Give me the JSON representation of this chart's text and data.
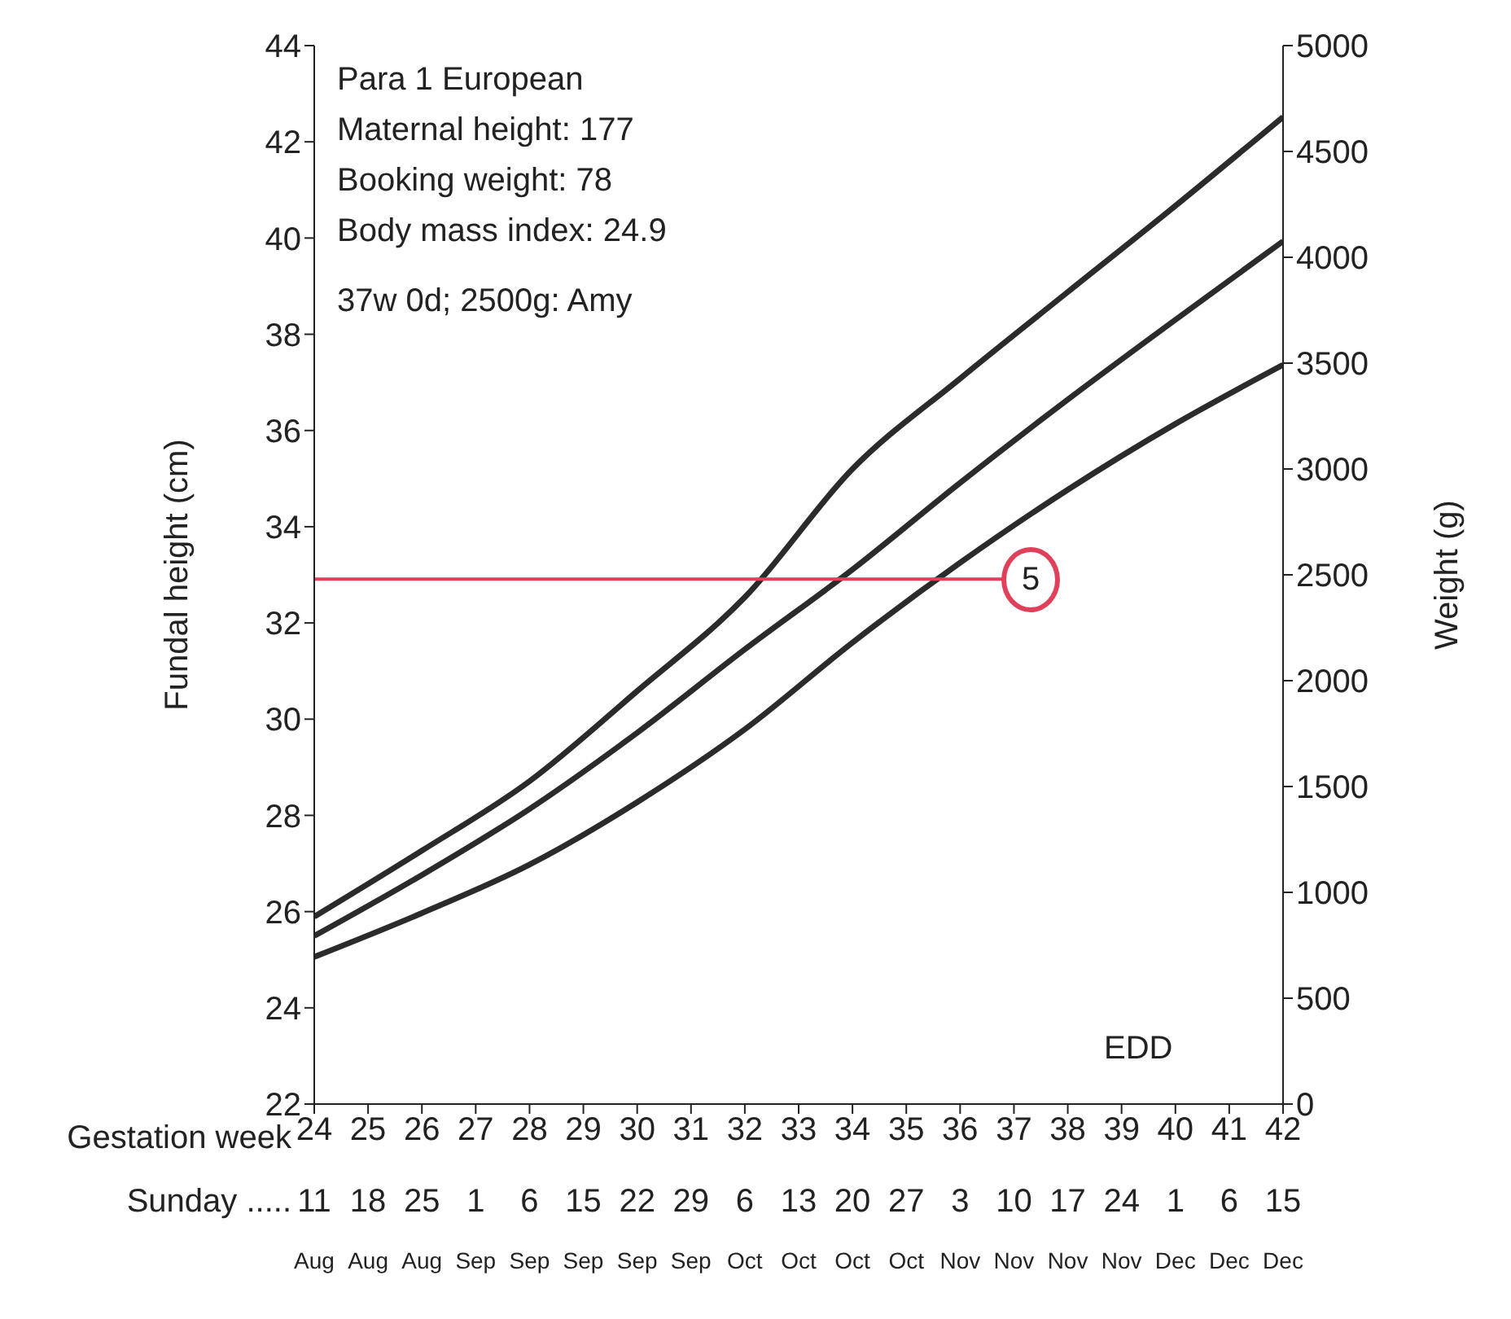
{
  "chart_data": {
    "type": "line",
    "ylabel": "Fundal height (cm)",
    "y2label": "Weight (g)",
    "xlabel": "Gestation week",
    "xlim": [
      24,
      42
    ],
    "xticks": [
      24,
      25,
      26,
      27,
      28,
      29,
      30,
      31,
      32,
      33,
      34,
      35,
      36,
      37,
      38,
      39,
      40,
      41,
      42
    ],
    "ylim": [
      22,
      44
    ],
    "yticks": [
      22,
      24,
      26,
      28,
      30,
      32,
      34,
      36,
      38,
      40,
      42,
      44
    ],
    "y2lim": [
      0,
      5000
    ],
    "y2ticks": [
      0,
      500,
      1000,
      1500,
      2000,
      2500,
      3000,
      3500,
      4000,
      4500,
      5000
    ],
    "x": [
      24,
      26,
      28,
      30,
      32,
      34,
      36,
      38,
      40,
      42
    ],
    "series": [
      {
        "color": "#2b2b2b",
        "axis": "y2",
        "values": [
          885,
          1197,
          1525,
          1951,
          2394,
          3000,
          3427,
          3836,
          4243,
          4663
        ]
      },
      {
        "color": "#2b2b2b",
        "axis": "y2",
        "values": [
          794,
          1082,
          1394,
          1754,
          2148,
          2525,
          2935,
          3328,
          3705,
          4076
        ]
      },
      {
        "color": "#2b2b2b",
        "axis": "y2",
        "values": [
          695,
          902,
          1131,
          1426,
          1770,
          2180,
          2557,
          2902,
          3213,
          3492
        ]
      },
      {
        "color": "#e0405a",
        "axis": "y2",
        "x": [
          24,
          36.8
        ],
        "values": [
          2480,
          2480
        ]
      }
    ],
    "annotations": [
      "Para 1 European",
      "Maternal height: 177",
      "Booking weight: 78",
      "Body mass index: 24.9",
      "37w 0d; 2500g: Amy",
      "5",
      "EDD",
      "Sunday .....",
      "11\nAug",
      "18\nAug",
      "25\nAug",
      "1\nSep",
      "6\nSep",
      "15\nSep",
      "22\nSep",
      "29\nSep",
      "6\nOct",
      "13\nOct",
      "20\nOct",
      "27\nOct",
      "3\nNov",
      "10\nNov",
      "17\nNov",
      "24\nNov",
      "1\nDec",
      "6\nDec",
      "15\nDec"
    ],
    "grid": false,
    "legend": false,
    "marker": "none",
    "line_style": "solid"
  }
}
